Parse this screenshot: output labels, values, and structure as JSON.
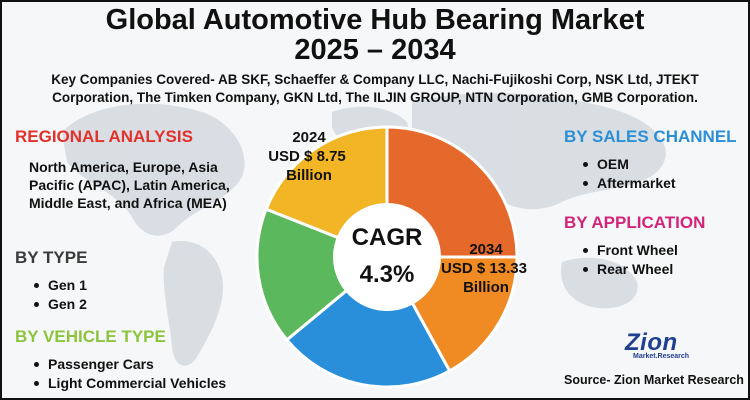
{
  "title": {
    "line1": "Global Automotive Hub Bearing Market",
    "line2": "2025 – 2034"
  },
  "subtitle": "Key Companies Covered- AB SKF, Schaeffer & Company LLC, Nachi-Fujikoshi Corp, NSK Ltd, JTEKT Corporation, The Timken Company, GKN Ltd, The ILJIN GROUP, NTN Corporation, GMB Corporation.",
  "regional": {
    "heading": "REGIONAL ANALYSIS",
    "text": "North America, Europe, Asia Pacific (APAC), Latin America, Middle East, and Africa (MEA)"
  },
  "by_type": {
    "heading": "BY TYPE",
    "items": [
      "Gen 1",
      "Gen 2"
    ]
  },
  "by_vehicle": {
    "heading": "BY VEHICLE TYPE",
    "items": [
      "Passenger Cars",
      "Light Commercial Vehicles"
    ]
  },
  "by_sales": {
    "heading": "BY SALES CHANNEL",
    "items": [
      "OEM",
      "Aftermarket"
    ]
  },
  "by_application": {
    "heading": "BY APPLICATION",
    "items": [
      "Front Wheel",
      "Rear Wheel"
    ]
  },
  "chart_data": {
    "type": "pie",
    "style": "donut",
    "segment_colors": [
      "#e4692a",
      "#f08a23",
      "#2a8fdb",
      "#5bb85c",
      "#f2b525"
    ],
    "values": [
      25,
      17,
      22,
      17,
      19
    ],
    "center": {
      "line1": "CAGR",
      "line2": "4.3%"
    },
    "label_2024": {
      "year": "2024",
      "value": "USD $ 8.75",
      "unit": "Billion"
    },
    "label_2034": {
      "year": "2034",
      "value": "USD $ 13.33",
      "unit": "Billion"
    }
  },
  "logo": {
    "word": "Zion",
    "sub": "Market.Research"
  },
  "source": "Source- Zion Market Research",
  "colors": {
    "regional": "#e2312b",
    "vehicle": "#8cc43c",
    "sales": "#2b8fd6",
    "application": "#d4237a"
  }
}
